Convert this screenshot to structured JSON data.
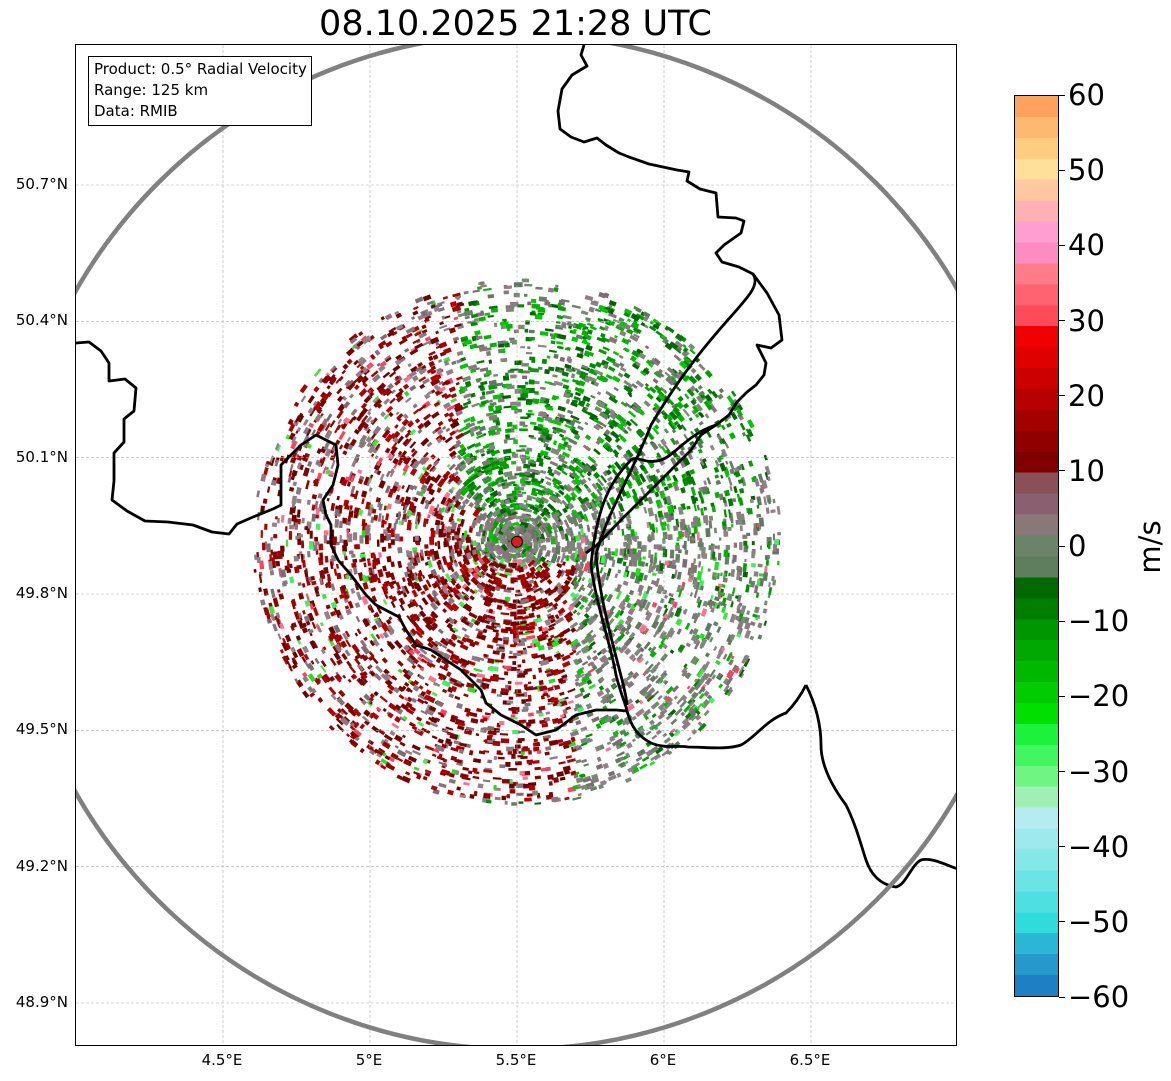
{
  "title": "08.10.2025 21:28 UTC",
  "info": {
    "product": "Product: 0.5° Radial Velocity",
    "range": "Range: 125 km",
    "data": "Data: RMIB"
  },
  "axes": {
    "lat_labels": [
      "50.7°N",
      "50.4°N",
      "50.1°N",
      "49.8°N",
      "49.5°N",
      "49.2°N",
      "48.9°N"
    ],
    "lon_labels": [
      "4.5°E",
      "5°E",
      "5.5°E",
      "6°E",
      "6.5°E"
    ],
    "lat_values": [
      50.7,
      50.4,
      50.1,
      49.8,
      49.5,
      49.2,
      48.9
    ],
    "lon_values": [
      4.5,
      5.0,
      5.5,
      6.0,
      6.5
    ],
    "lon_range": [
      4.0,
      7.0
    ],
    "lat_range": [
      48.8,
      51.0
    ]
  },
  "radar": {
    "lon": 5.5,
    "lat": 49.915,
    "range_km": 125,
    "site_color": "#e31a1c",
    "ring_color": "#808080"
  },
  "colorbar": {
    "unit": "m/s",
    "min": -60,
    "max": 60,
    "tick_values": [
      60,
      50,
      40,
      30,
      20,
      10,
      0,
      -10,
      -20,
      -30,
      -40,
      -50,
      -60
    ],
    "tick_labels": [
      "60",
      "50",
      "40",
      "30",
      "20",
      "10",
      "0",
      "−10",
      "−20",
      "−30",
      "−40",
      "−50",
      "−60"
    ],
    "colors": [
      "#1f7fc4",
      "#2699cc",
      "#2bb6d6",
      "#2fdcdc",
      "#4ee0e0",
      "#6ae4e4",
      "#84e8e8",
      "#9ee9ec",
      "#b4ecef",
      "#9ef0b4",
      "#6ef582",
      "#40f760",
      "#1cf23c",
      "#00e000",
      "#00cc00",
      "#00b800",
      "#00a800",
      "#009600",
      "#007e00",
      "#006a00",
      "#5e7e5e",
      "#6b8368",
      "#8a7878",
      "#8a6070",
      "#8a5058",
      "#800000",
      "#900000",
      "#a40000",
      "#b80000",
      "#cc0000",
      "#e00000",
      "#f00000",
      "#ff4a5a",
      "#ff6270",
      "#ff7c88",
      "#ff8cc0",
      "#ff9ed0",
      "#ffb0b4",
      "#ffc8a0",
      "#ffe09a",
      "#ffcc80",
      "#ffb870",
      "#ffa25e"
    ]
  }
}
